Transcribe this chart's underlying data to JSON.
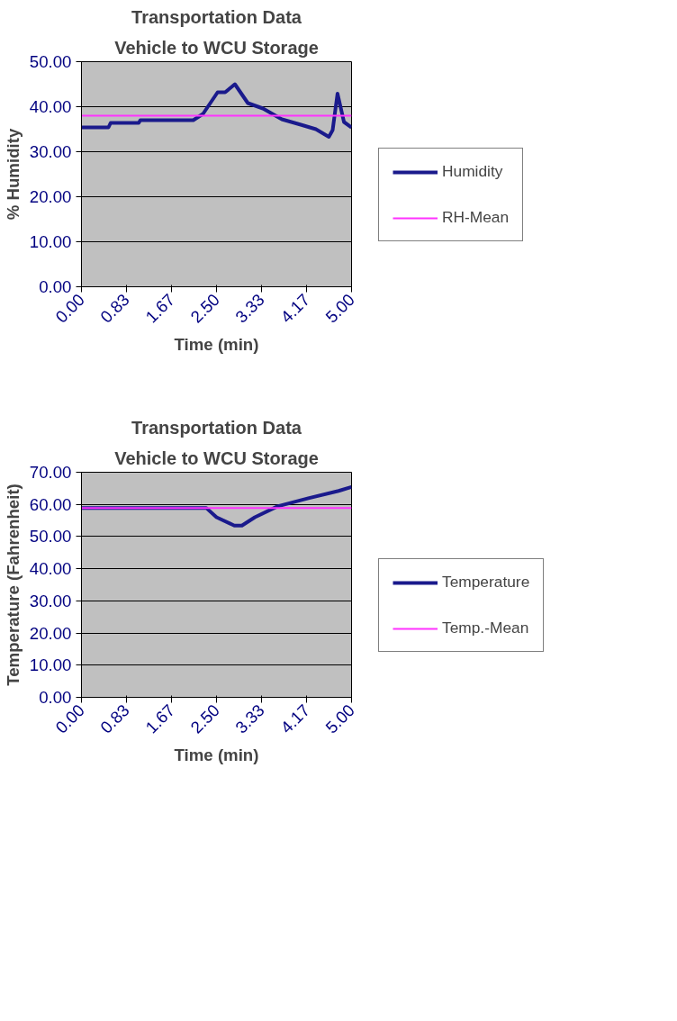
{
  "chart_data": [
    {
      "type": "line",
      "title": "Transportation Data",
      "subtitle": "Vehicle to WCU Storage",
      "xlabel": "Time (min)",
      "ylabel": "% Humidity",
      "xlim": [
        0,
        5
      ],
      "xticks": [
        {
          "value": 0,
          "label": "0.00"
        },
        0.83,
        1.67,
        {
          "value": 2.5,
          "label": "2.50"
        },
        3.33,
        4.17,
        {
          "value": 5,
          "label": "5.00"
        }
      ],
      "ylim": [
        0,
        50
      ],
      "yticks": [
        {
          "value": 0,
          "label": "0.00"
        },
        {
          "value": 10,
          "label": "10.00"
        },
        {
          "value": 20,
          "label": "20.00"
        },
        {
          "value": 30,
          "label": "30.00"
        },
        {
          "value": 40,
          "label": "40.00"
        },
        {
          "value": 50,
          "label": "50.00"
        }
      ],
      "grid": "y",
      "legend": "right",
      "line_style": "solid",
      "marker": "none",
      "series": [
        {
          "name": "Humidity",
          "color": "#1a1a8c",
          "x": [
            0,
            0.5,
            0.54,
            1.06,
            1.09,
            2.07,
            2.25,
            2.52,
            2.66,
            2.84,
            3.08,
            3.36,
            3.71,
            4.06,
            4.34,
            4.58,
            4.65,
            4.74,
            4.86,
            5.0
          ],
          "values": [
            35.4,
            35.4,
            36.4,
            36.4,
            37,
            37,
            38.4,
            43.2,
            43.2,
            45,
            40.8,
            39.6,
            37.2,
            36,
            35,
            33.3,
            34.8,
            42.9,
            36.6,
            35.4
          ]
        },
        {
          "name": "RH-Mean",
          "color": "#ff33ff",
          "x": [
            0,
            5
          ],
          "values": [
            38,
            38
          ]
        }
      ]
    },
    {
      "type": "line",
      "title": "Transportation Data",
      "subtitle": "Vehicle to WCU Storage",
      "xlabel": "Time (min)",
      "ylabel": "Temperature (Fahrenheit)",
      "xlim": [
        0,
        5
      ],
      "xticks": [
        {
          "value": 0,
          "label": "0.00"
        },
        0.83,
        1.67,
        {
          "value": 2.5,
          "label": "2.50"
        },
        3.33,
        4.17,
        {
          "value": 5,
          "label": "5.00"
        }
      ],
      "ylim": [
        0,
        70
      ],
      "yticks": [
        {
          "value": 0,
          "label": "0.00"
        },
        {
          "value": 10,
          "label": "10.00"
        },
        {
          "value": 20,
          "label": "20.00"
        },
        {
          "value": 30,
          "label": "30.00"
        },
        {
          "value": 40,
          "label": "40.00"
        },
        {
          "value": 50,
          "label": "50.00"
        },
        {
          "value": 60,
          "label": "60.00"
        },
        {
          "value": 70,
          "label": "70.00"
        }
      ],
      "grid": "y",
      "legend": "right",
      "line_style": "solid",
      "marker": "none",
      "series": [
        {
          "name": "Temperature",
          "color": "#1a1a8c",
          "x": [
            0,
            2.31,
            2.5,
            2.83,
            2.97,
            3.21,
            3.63,
            4.2,
            4.76,
            5.0
          ],
          "values": [
            58.9,
            58.9,
            56,
            53.4,
            53.4,
            56,
            59.4,
            61.9,
            64.2,
            65.4
          ]
        },
        {
          "name": "Temp.-Mean",
          "color": "#ff33ff",
          "x": [
            0,
            5
          ],
          "values": [
            58.9,
            58.9
          ]
        }
      ]
    }
  ]
}
